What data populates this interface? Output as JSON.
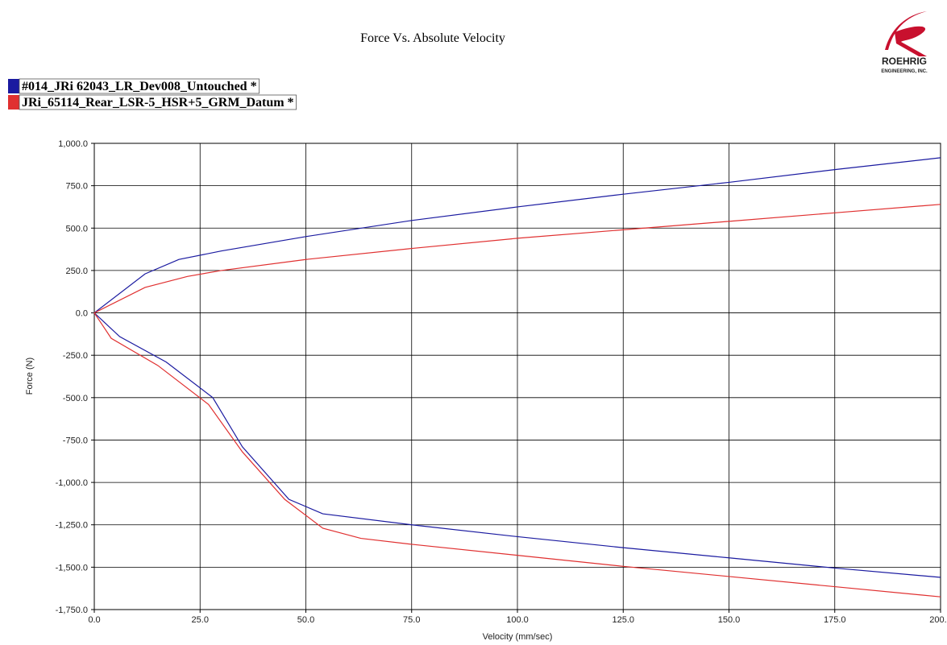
{
  "chart_data": {
    "type": "line",
    "title": "Force Vs. Absolute Velocity",
    "logo": {
      "name": "ROEHRIG",
      "sub": "ENGINEERING, INC."
    },
    "x_label": "Velocity (mm/sec)",
    "y_label": "Force (N)",
    "xlim": [
      0,
      200
    ],
    "ylim": [
      -1750,
      1000
    ],
    "grid": true,
    "xticks": [
      {
        "value": 0,
        "label": "0.0"
      },
      {
        "value": 25,
        "label": "25.0"
      },
      {
        "value": 50,
        "label": "50.0"
      },
      {
        "value": 75,
        "label": "75.0"
      },
      {
        "value": 100,
        "label": "100.0"
      },
      {
        "value": 125,
        "label": "125.0"
      },
      {
        "value": 150,
        "label": "150.0"
      },
      {
        "value": 175,
        "label": "175.0"
      },
      {
        "value": 200,
        "label": "200.0"
      }
    ],
    "yticks": [
      {
        "value": 1000,
        "label": "1,000.0"
      },
      {
        "value": 750,
        "label": "750.0"
      },
      {
        "value": 500,
        "label": "500.0"
      },
      {
        "value": 250,
        "label": "250.0"
      },
      {
        "value": 0,
        "label": "0.0"
      },
      {
        "value": -250,
        "label": "-250.0"
      },
      {
        "value": -500,
        "label": "-500.0"
      },
      {
        "value": -750,
        "label": "-750.0"
      },
      {
        "value": -1000,
        "label": "-1,000.0"
      },
      {
        "value": -1250,
        "label": "-1,250.0"
      },
      {
        "value": -1500,
        "label": "-1,500.0"
      },
      {
        "value": -1750,
        "label": "-1,750.0"
      }
    ],
    "series": [
      {
        "name": "#014_JRi 62043_LR_Dev008_Untouched *",
        "color": "#1a1aa0",
        "x": [
          200,
          175,
          150,
          125,
          100,
          75,
          54,
          46,
          35,
          28,
          17,
          6,
          0,
          12,
          20,
          30,
          50,
          75,
          100,
          125,
          150,
          175,
          200
        ],
        "values": [
          -1560,
          -1505,
          -1445,
          -1385,
          -1320,
          -1250,
          -1185,
          -1100,
          -790,
          -500,
          -290,
          -140,
          0,
          230,
          315,
          365,
          450,
          545,
          625,
          700,
          770,
          845,
          915
        ]
      },
      {
        "name": "JRi_65114_Rear_LSR-5_HSR+5_GRM_Datum *",
        "color": "#e03030",
        "x": [
          200,
          175,
          150,
          125,
          100,
          75,
          63,
          54,
          45,
          35,
          27,
          15,
          4,
          0,
          12,
          22,
          30,
          50,
          75,
          100,
          125,
          150,
          175,
          200
        ],
        "values": [
          -1675,
          -1615,
          -1555,
          -1495,
          -1430,
          -1365,
          -1330,
          -1270,
          -1100,
          -820,
          -540,
          -310,
          -150,
          0,
          150,
          215,
          250,
          315,
          380,
          440,
          490,
          540,
          590,
          640
        ]
      }
    ]
  }
}
